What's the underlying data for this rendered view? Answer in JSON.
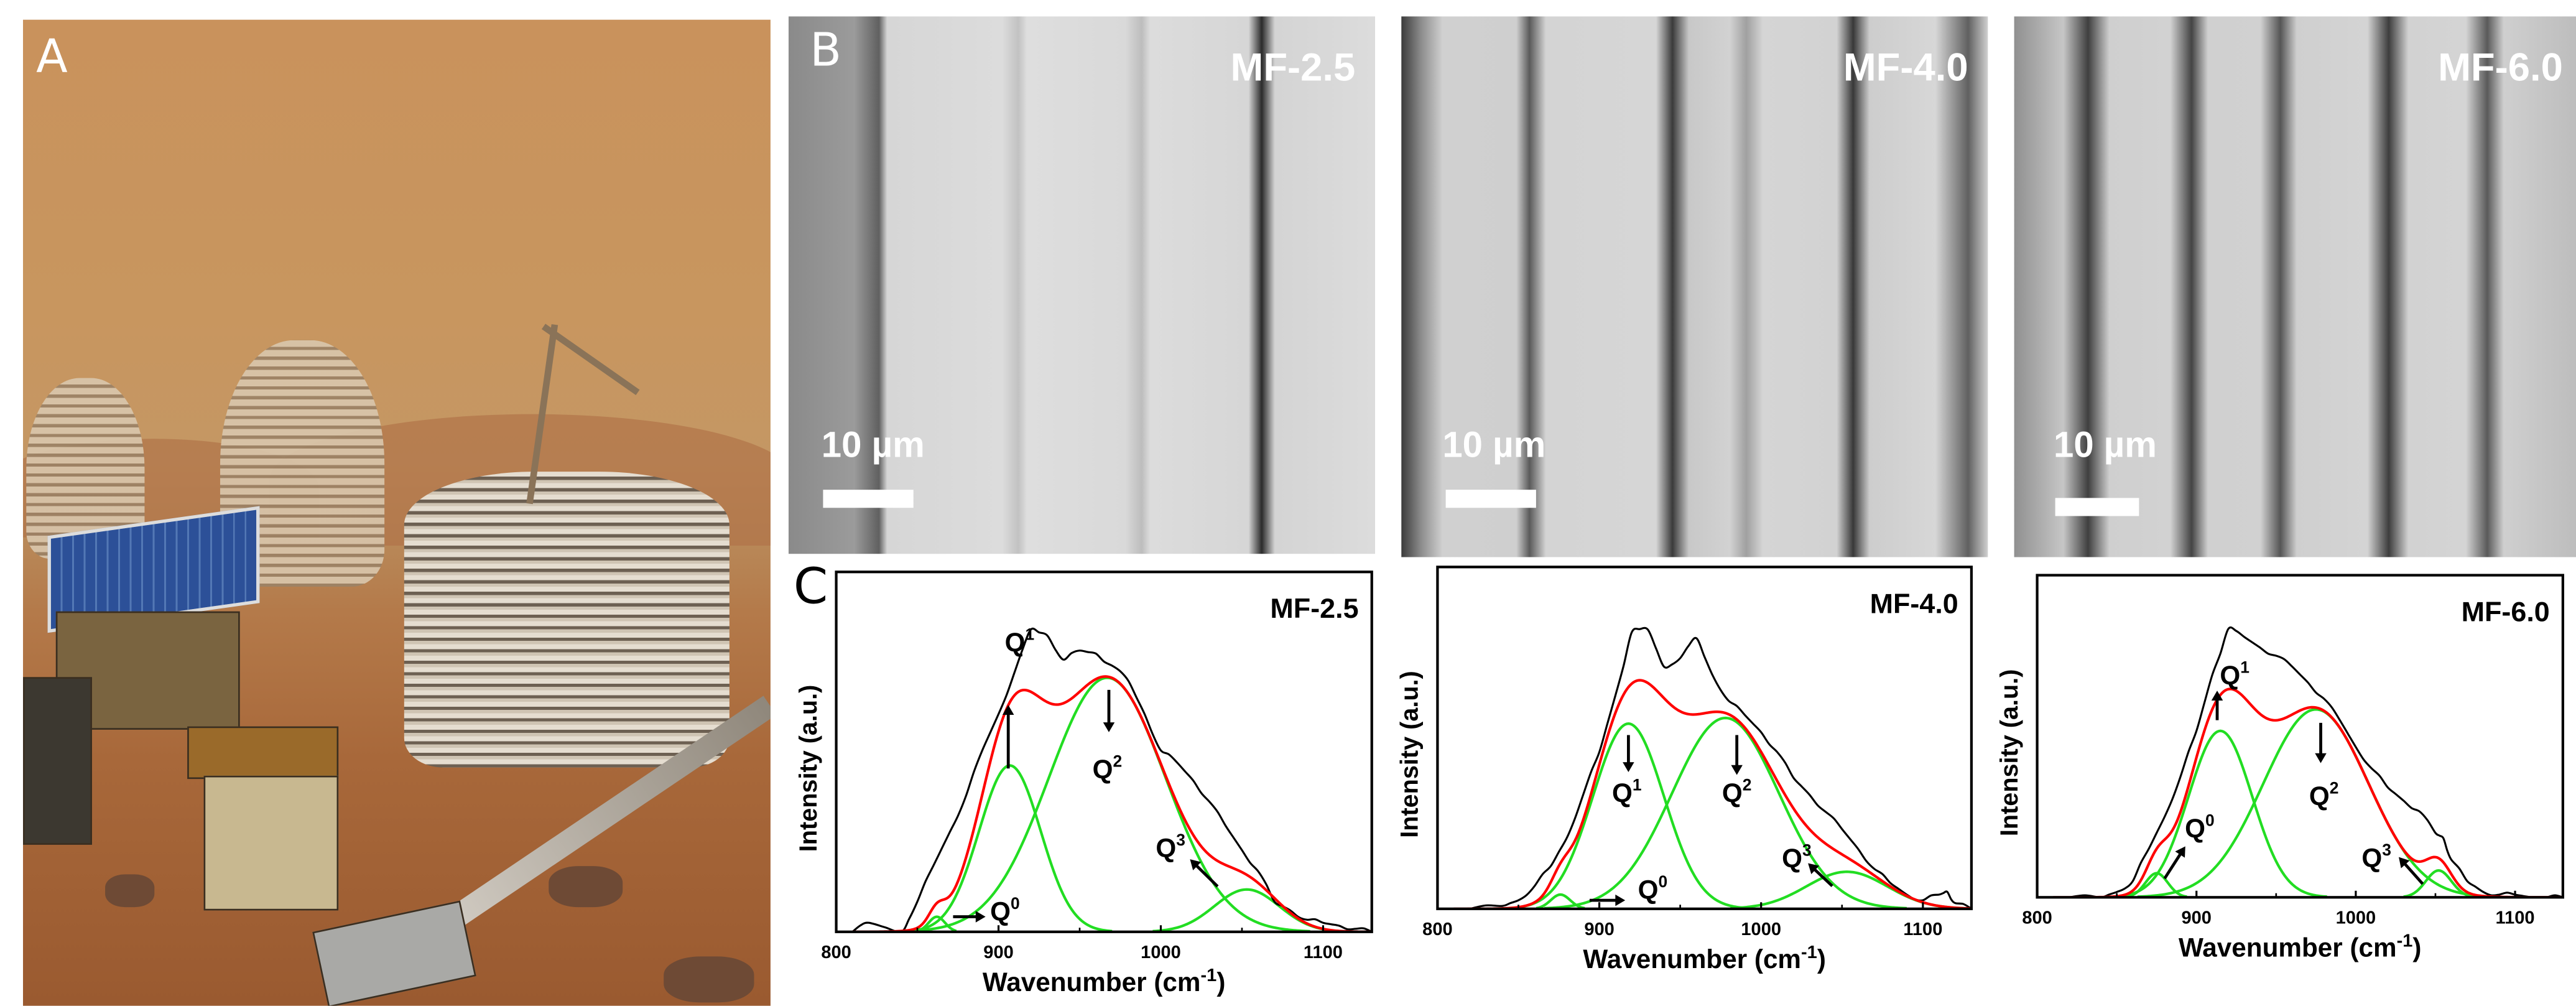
{
  "panels": {
    "a_label": "A",
    "b_label": "B",
    "c_label": "C"
  },
  "sem_images": [
    {
      "sample": "MF-2.5",
      "scale_bar": "10 µm"
    },
    {
      "sample": "MF-4.0",
      "scale_bar": "10 µm"
    },
    {
      "sample": "MF-6.0",
      "scale_bar": "10 µm"
    }
  ],
  "colors": {
    "measured": "#000000",
    "fit": "#ff0000",
    "components": "#22dd22"
  },
  "chart_data": [
    {
      "type": "line",
      "title": "MF-2.5",
      "xlabel": "Wavenumber (cm",
      "xlabel_sup": "-1",
      "xlabel_end": ")",
      "ylabel": "Intensity (a.u.)",
      "xlim": [
        800,
        1130
      ],
      "ylim": [
        0,
        1.19
      ],
      "xticks": [
        800,
        900,
        1000,
        1100
      ],
      "grid": false,
      "measured": {
        "x": [
          810,
          820,
          840,
          850,
          860,
          870,
          880,
          890,
          900,
          910,
          920,
          930,
          940,
          950,
          960,
          970,
          980,
          990,
          1000,
          1010,
          1020,
          1030,
          1040,
          1050,
          1060,
          1070,
          1080,
          1090,
          1100,
          1110,
          1120,
          1130
        ],
        "y": [
          0.0,
          0.03,
          0.0,
          0.1,
          0.22,
          0.33,
          0.45,
          0.6,
          0.72,
          0.86,
          1.0,
          0.98,
          0.9,
          0.93,
          0.92,
          0.88,
          0.83,
          0.72,
          0.6,
          0.56,
          0.5,
          0.43,
          0.35,
          0.27,
          0.2,
          0.1,
          0.07,
          0.04,
          0.03,
          0.02,
          0.01,
          0.0
        ]
      },
      "components": [
        {
          "name": "Q0",
          "center": 862,
          "amplitude": 0.05,
          "sigma": 5
        },
        {
          "name": "Q1",
          "center": 907,
          "amplitude": 0.55,
          "sigma": 19
        },
        {
          "name": "Q2",
          "center": 967,
          "amplitude": 0.84,
          "sigma": 36
        },
        {
          "name": "Q3",
          "center": 1053,
          "amplitude": 0.14,
          "sigma": 20
        }
      ],
      "annotations": [
        {
          "label": "Q",
          "sup": "1",
          "x": 913,
          "y": 0.96,
          "arrow": [
            906,
            0.54,
            906,
            0.75
          ]
        },
        {
          "label": "Q",
          "sup": "2",
          "x": 967,
          "y": 0.54,
          "arrow": [
            968,
            0.8,
            968,
            0.66
          ]
        },
        {
          "label": "Q",
          "sup": "0",
          "x": 904,
          "y": 0.07,
          "arrow": [
            872,
            0.05,
            892,
            0.05
          ]
        },
        {
          "label": "Q",
          "sup": "3",
          "x": 1006,
          "y": 0.28,
          "arrow": [
            1035,
            0.15,
            1018,
            0.24
          ]
        }
      ]
    },
    {
      "type": "line",
      "title": "MF-4.0",
      "xlabel": "Wavenumber (cm",
      "xlabel_sup": "-1",
      "xlabel_end": ")",
      "ylabel": "Intensity (a.u.)",
      "xlim": [
        800,
        1130
      ],
      "ylim": [
        0,
        1.2
      ],
      "xticks": [
        800,
        900,
        1000,
        1100
      ],
      "grid": false,
      "measured": {
        "x": [
          820,
          840,
          850,
          860,
          870,
          880,
          890,
          900,
          910,
          920,
          930,
          940,
          950,
          960,
          970,
          980,
          990,
          1000,
          1010,
          1020,
          1030,
          1040,
          1050,
          1060,
          1070,
          1080,
          1090,
          1100,
          1110,
          1115,
          1120,
          1130
        ],
        "y": [
          0.0,
          0.01,
          0.03,
          0.08,
          0.15,
          0.25,
          0.4,
          0.55,
          0.75,
          0.97,
          0.98,
          0.85,
          0.88,
          0.95,
          0.82,
          0.73,
          0.68,
          0.62,
          0.55,
          0.46,
          0.4,
          0.34,
          0.28,
          0.21,
          0.14,
          0.09,
          0.05,
          0.03,
          0.05,
          0.06,
          0.02,
          0.0
        ]
      },
      "components": [
        {
          "name": "Q0",
          "center": 876,
          "amplitude": 0.05,
          "sigma": 6
        },
        {
          "name": "Q1",
          "center": 918,
          "amplitude": 0.65,
          "sigma": 22
        },
        {
          "name": "Q2",
          "center": 978,
          "amplitude": 0.67,
          "sigma": 33
        },
        {
          "name": "Q3",
          "center": 1053,
          "amplitude": 0.13,
          "sigma": 25
        }
      ],
      "annotations": [
        {
          "label": "Q",
          "sup": "1",
          "x": 917,
          "y": 0.41,
          "arrow": [
            918,
            0.61,
            918,
            0.48
          ]
        },
        {
          "label": "Q",
          "sup": "2",
          "x": 985,
          "y": 0.41,
          "arrow": [
            985,
            0.61,
            985,
            0.47
          ]
        },
        {
          "label": "Q",
          "sup": "0",
          "x": 933,
          "y": 0.07,
          "arrow": [
            894,
            0.03,
            916,
            0.03
          ]
        },
        {
          "label": "Q",
          "sup": "3",
          "x": 1022,
          "y": 0.18,
          "arrow": [
            1044,
            0.08,
            1029,
            0.16
          ]
        }
      ]
    },
    {
      "type": "line",
      "title": "MF-6.0",
      "xlabel": "Wavenumber (cm",
      "xlabel_sup": "-1",
      "xlabel_end": ")",
      "ylabel": "Intensity (a.u.)",
      "xlim": [
        800,
        1130
      ],
      "ylim": [
        0,
        1.2
      ],
      "xticks": [
        800,
        900,
        1000,
        1100
      ],
      "grid": false,
      "measured": {
        "x": [
          820,
          840,
          850,
          860,
          870,
          880,
          890,
          900,
          910,
          920,
          930,
          940,
          950,
          960,
          970,
          980,
          990,
          1000,
          1010,
          1020,
          1030,
          1040,
          1050,
          1055,
          1060,
          1070,
          1080,
          1090,
          1100,
          1110,
          1120,
          1130
        ],
        "y": [
          0.0,
          0.0,
          0.02,
          0.06,
          0.18,
          0.3,
          0.45,
          0.62,
          0.83,
          1.0,
          0.97,
          0.93,
          0.9,
          0.86,
          0.8,
          0.74,
          0.66,
          0.56,
          0.48,
          0.41,
          0.36,
          0.32,
          0.24,
          0.22,
          0.14,
          0.06,
          0.02,
          0.01,
          0.01,
          0.0,
          0.0,
          0.0
        ]
      },
      "components": [
        {
          "name": "Q0",
          "center": 875,
          "amplitude": 0.09,
          "sigma": 7
        },
        {
          "name": "Q1",
          "center": 915,
          "amplitude": 0.62,
          "sigma": 20
        },
        {
          "name": "Q2",
          "center": 975,
          "amplitude": 0.7,
          "sigma": 33
        },
        {
          "name": "Q3",
          "center": 1052,
          "amplitude": 0.1,
          "sigma": 8
        }
      ],
      "annotations": [
        {
          "label": "Q",
          "sup": "1",
          "x": 924,
          "y": 0.83,
          "arrow": [
            913,
            0.66,
            913,
            0.77
          ]
        },
        {
          "label": "Q",
          "sup": "2",
          "x": 980,
          "y": 0.38,
          "arrow": [
            978,
            0.65,
            978,
            0.5
          ]
        },
        {
          "label": "Q",
          "sup": "0",
          "x": 902,
          "y": 0.26,
          "arrow": [
            880,
            0.07,
            893,
            0.19
          ]
        },
        {
          "label": "Q",
          "sup": "3",
          "x": 1013,
          "y": 0.15,
          "arrow": [
            1042,
            0.05,
            1027,
            0.15
          ]
        }
      ]
    }
  ]
}
